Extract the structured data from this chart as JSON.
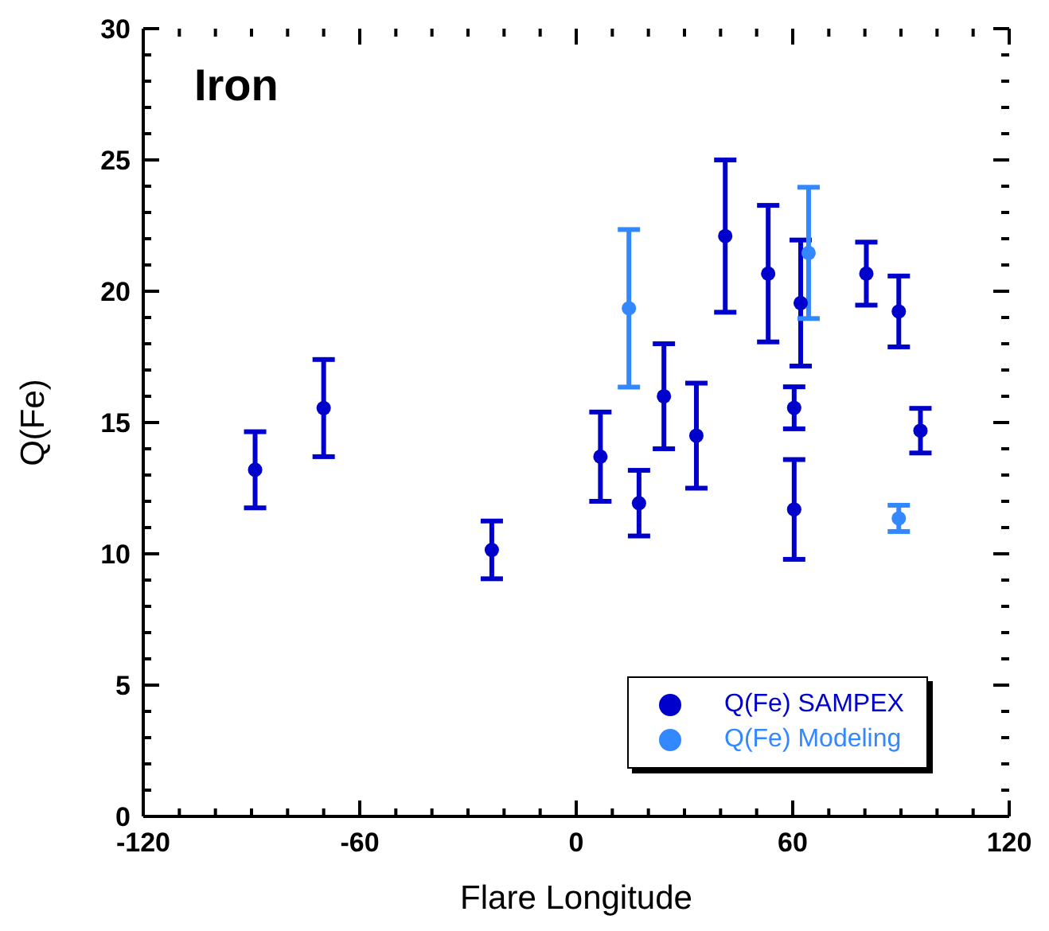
{
  "chart_data": {
    "type": "scatter",
    "xlabel": "Flare Longitude",
    "ylabel": "Q(Fe)",
    "annotations": [
      "Iron"
    ],
    "series": [
      {
        "name": "Q(Fe) SAMPEX",
        "color": "#0000cc",
        "x": [
          -89,
          -70,
          -23.4,
          6.7,
          17.4,
          24.3,
          33.3,
          41.3,
          53.2,
          62.2,
          60.4,
          60.4,
          80.4,
          89.4,
          95.4
        ],
        "values": [
          13.2,
          15.55,
          10.15,
          13.7,
          11.93,
          16.0,
          14.5,
          22.1,
          20.67,
          19.55,
          15.56,
          11.69,
          20.67,
          19.23,
          14.69
        ],
        "errors": [
          1.45,
          1.85,
          1.1,
          1.7,
          1.25,
          2.0,
          2.0,
          2.9,
          2.6,
          2.4,
          0.8,
          1.9,
          1.2,
          1.35,
          0.85
        ]
      },
      {
        "name": "Q(Fe) Modeling",
        "color": "#3388ff",
        "x": [
          14.6,
          64.4,
          89.4
        ],
        "values": [
          19.35,
          21.46,
          11.35
        ],
        "errors": [
          3.0,
          2.5,
          0.5
        ]
      }
    ],
    "xlim": [
      -120,
      120
    ],
    "xticks": [
      -120,
      {
        "value": -110,
        "label": null
      },
      {
        "value": -100,
        "label": null
      },
      {
        "value": -90,
        "label": null
      },
      {
        "value": -80,
        "label": null
      },
      {
        "value": -70,
        "label": null
      },
      -60,
      {
        "value": -50,
        "label": null
      },
      {
        "value": -40,
        "label": null
      },
      {
        "value": -30,
        "label": null
      },
      {
        "value": -20,
        "label": null
      },
      {
        "value": -10,
        "label": null
      },
      0,
      {
        "value": 10,
        "label": null
      },
      {
        "value": 20,
        "label": null
      },
      {
        "value": 30,
        "label": null
      },
      {
        "value": 40,
        "label": null
      },
      {
        "value": 50,
        "label": null
      },
      60,
      {
        "value": 70,
        "label": null
      },
      {
        "value": 80,
        "label": null
      },
      {
        "value": 90,
        "label": null
      },
      {
        "value": 100,
        "label": null
      },
      {
        "value": 110,
        "label": null
      },
      120
    ],
    "ylim": [
      0,
      30
    ],
    "yticks": [
      0,
      {
        "value": 1,
        "label": null
      },
      {
        "value": 2,
        "label": null
      },
      {
        "value": 3,
        "label": null
      },
      {
        "value": 4,
        "label": null
      },
      5,
      {
        "value": 6,
        "label": null
      },
      {
        "value": 7,
        "label": null
      },
      {
        "value": 8,
        "label": null
      },
      {
        "value": 9,
        "label": null
      },
      10,
      {
        "value": 11,
        "label": null
      },
      {
        "value": 12,
        "label": null
      },
      {
        "value": 13,
        "label": null
      },
      {
        "value": 14,
        "label": null
      },
      15,
      {
        "value": 16,
        "label": null
      },
      {
        "value": 17,
        "label": null
      },
      {
        "value": 18,
        "label": null
      },
      {
        "value": 19,
        "label": null
      },
      20,
      {
        "value": 21,
        "label": null
      },
      {
        "value": 22,
        "label": null
      },
      {
        "value": 23,
        "label": null
      },
      {
        "value": 24,
        "label": null
      },
      25,
      {
        "value": 26,
        "label": null
      },
      {
        "value": 27,
        "label": null
      },
      {
        "value": 28,
        "label": null
      },
      {
        "value": 29,
        "label": null
      },
      30
    ],
    "grid": false,
    "legend": "bottom right",
    "marker": "circle"
  }
}
